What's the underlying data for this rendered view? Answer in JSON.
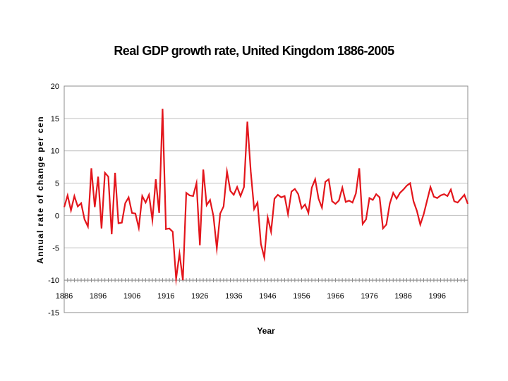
{
  "chart_data": {
    "type": "line",
    "title": "Real GDP growth rate, United Kingdom 1886-2005",
    "xlabel": "Year",
    "ylabel": "Annual rate of change per cen",
    "ylim": [
      -15,
      20
    ],
    "y_ticks": [
      -15,
      -10,
      -5,
      0,
      5,
      10,
      15,
      20
    ],
    "x_tick_labels": [
      "1886",
      "1896",
      "1906",
      "1916",
      "1926",
      "1936",
      "1946",
      "1956",
      "1966",
      "1976",
      "1986",
      "1996"
    ],
    "x_start": 1886,
    "x_end": 2005,
    "grid": true,
    "legend": "none",
    "series": [
      {
        "name": "Real GDP growth rate",
        "color": "#e3161c",
        "x": [
          1886,
          1887,
          1888,
          1889,
          1890,
          1891,
          1892,
          1893,
          1894,
          1895,
          1896,
          1897,
          1898,
          1899,
          1900,
          1901,
          1902,
          1903,
          1904,
          1905,
          1906,
          1907,
          1908,
          1909,
          1910,
          1911,
          1912,
          1913,
          1914,
          1915,
          1916,
          1917,
          1918,
          1919,
          1920,
          1921,
          1922,
          1923,
          1924,
          1925,
          1926,
          1927,
          1928,
          1929,
          1930,
          1931,
          1932,
          1933,
          1934,
          1935,
          1936,
          1937,
          1938,
          1939,
          1940,
          1941,
          1942,
          1943,
          1944,
          1945,
          1946,
          1947,
          1948,
          1949,
          1950,
          1951,
          1952,
          1953,
          1954,
          1955,
          1956,
          1957,
          1958,
          1959,
          1960,
          1961,
          1962,
          1963,
          1964,
          1965,
          1966,
          1967,
          1968,
          1969,
          1970,
          1971,
          1972,
          1973,
          1974,
          1975,
          1976,
          1977,
          1978,
          1979,
          1980,
          1981,
          1982,
          1983,
          1984,
          1985,
          1986,
          1987,
          1988,
          1989,
          1990,
          1991,
          1992,
          1993,
          1994,
          1995,
          1996,
          1997,
          1998,
          1999,
          2000,
          2001,
          2002,
          2003,
          2004,
          2005
        ],
        "values": [
          1.3,
          3.1,
          0.8,
          3.0,
          1.4,
          1.9,
          -0.6,
          -1.7,
          7.3,
          1.3,
          6.0,
          -2.0,
          6.6,
          6.0,
          -2.9,
          6.6,
          -1.2,
          -1.1,
          1.9,
          2.8,
          0.4,
          0.3,
          -1.9,
          3.0,
          2.0,
          3.2,
          -0.7,
          5.6,
          0.4,
          16.5,
          -2.1,
          -2.0,
          -2.5,
          -9.8,
          -5.9,
          -10.0,
          3.5,
          3.1,
          3.0,
          5.0,
          -4.6,
          7.1,
          1.6,
          2.4,
          -0.1,
          -5.1,
          0.3,
          1.4,
          6.8,
          3.8,
          3.2,
          4.4,
          3.0,
          4.4,
          14.5,
          6.8,
          1.0,
          2.0,
          -4.4,
          -6.5,
          -0.3,
          -2.5,
          2.6,
          3.2,
          2.8,
          3.0,
          0.2,
          3.7,
          4.1,
          3.3,
          1.1,
          1.7,
          0.4,
          4.3,
          5.6,
          2.6,
          1.2,
          5.2,
          5.6,
          2.2,
          1.8,
          2.3,
          4.3,
          2.1,
          2.3,
          2.0,
          3.4,
          7.3,
          -1.3,
          -0.6,
          2.7,
          2.4,
          3.3,
          2.8,
          -2.0,
          -1.4,
          1.8,
          3.5,
          2.6,
          3.5,
          4.0,
          4.6,
          5.0,
          2.2,
          0.7,
          -1.4,
          0.2,
          2.3,
          4.4,
          2.9,
          2.7,
          3.1,
          3.3,
          3.0,
          4.0,
          2.2,
          2.0,
          2.6,
          3.2,
          1.8
        ]
      }
    ]
  }
}
